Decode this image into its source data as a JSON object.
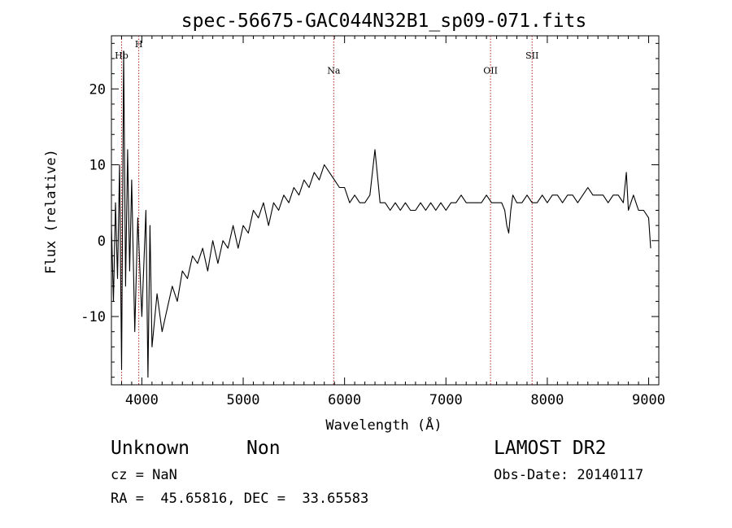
{
  "chart_data": {
    "type": "line",
    "title": "spec-56675-GAC044N32B1_sp09-071.fits",
    "xlabel": "Wavelength (Å)",
    "ylabel": "Flux (relative)",
    "xlim": [
      3700,
      9100
    ],
    "ylim": [
      -19,
      27
    ],
    "xticks": [
      4000,
      5000,
      6000,
      7000,
      8000,
      9000
    ],
    "yticks": [
      -10,
      0,
      10,
      20
    ],
    "grid": false,
    "line_color": "#000000",
    "marker_color": "#b22222",
    "series": [
      {
        "x": [
          3700,
          3720,
          3740,
          3760,
          3780,
          3800,
          3820,
          3840,
          3860,
          3880,
          3900,
          3930,
          3960,
          4000,
          4040,
          4060,
          4080,
          4100,
          4150,
          4200,
          4250,
          4300,
          4350,
          4400,
          4450,
          4500,
          4550,
          4600,
          4650,
          4700,
          4750,
          4800,
          4850,
          4900,
          4950,
          5000,
          5050,
          5100,
          5150,
          5200,
          5250,
          5300,
          5350,
          5400,
          5450,
          5500,
          5550,
          5600,
          5650,
          5700,
          5750,
          5800,
          5850,
          5900,
          5950,
          6000,
          6050,
          6100,
          6150,
          6200,
          6250,
          6300,
          6350,
          6400,
          6450,
          6500,
          6550,
          6600,
          6650,
          6700,
          6750,
          6800,
          6850,
          6900,
          6950,
          7000,
          7050,
          7100,
          7150,
          7200,
          7250,
          7300,
          7350,
          7400,
          7450,
          7500,
          7550,
          7580,
          7600,
          7620,
          7640,
          7660,
          7700,
          7750,
          7800,
          7850,
          7900,
          7950,
          8000,
          8050,
          8100,
          8150,
          8200,
          8250,
          8300,
          8350,
          8400,
          8450,
          8500,
          8550,
          8600,
          8650,
          8700,
          8750,
          8780,
          8800,
          8850,
          8900,
          8950,
          9000,
          9020
        ],
        "y": [
          2,
          -8,
          5,
          -5,
          10,
          -17,
          25,
          -6,
          12,
          -4,
          8,
          -12,
          3,
          -10,
          4,
          -18,
          2,
          -14,
          -7,
          -12,
          -9,
          -6,
          -8,
          -4,
          -5,
          -2,
          -3,
          -1,
          -4,
          0,
          -3,
          0,
          -1,
          2,
          -1,
          2,
          1,
          4,
          3,
          5,
          2,
          5,
          4,
          6,
          5,
          7,
          6,
          8,
          7,
          9,
          8,
          10,
          9,
          8,
          7,
          7,
          5,
          6,
          5,
          5,
          6,
          12,
          5,
          5,
          4,
          5,
          4,
          5,
          4,
          4,
          5,
          4,
          5,
          4,
          5,
          4,
          5,
          5,
          6,
          5,
          5,
          5,
          5,
          6,
          5,
          5,
          5,
          4,
          2,
          1,
          4,
          6,
          5,
          5,
          6,
          5,
          5,
          6,
          5,
          6,
          6,
          5,
          6,
          6,
          5,
          6,
          7,
          6,
          6,
          6,
          5,
          6,
          6,
          5,
          9,
          4,
          6,
          4,
          4,
          3,
          -1
        ]
      }
    ],
    "line_markers": [
      {
        "label": "Hb",
        "x": 3800,
        "label_y": 24
      },
      {
        "label": "H",
        "x": 3970,
        "label_y": 25.5
      },
      {
        "label": "Na",
        "x": 5893,
        "label_y": 22
      },
      {
        "label": "OII",
        "x": 7440,
        "label_y": 22
      },
      {
        "label": "SII",
        "x": 7850,
        "label_y": 24
      }
    ]
  },
  "info": {
    "class_label": "Unknown",
    "subclass_label": "Non",
    "survey": "LAMOST DR2",
    "cz": "cz = NaN",
    "obs_date": "Obs-Date: 20140117",
    "coords": "RA =  45.65816, DEC =  33.65583"
  }
}
